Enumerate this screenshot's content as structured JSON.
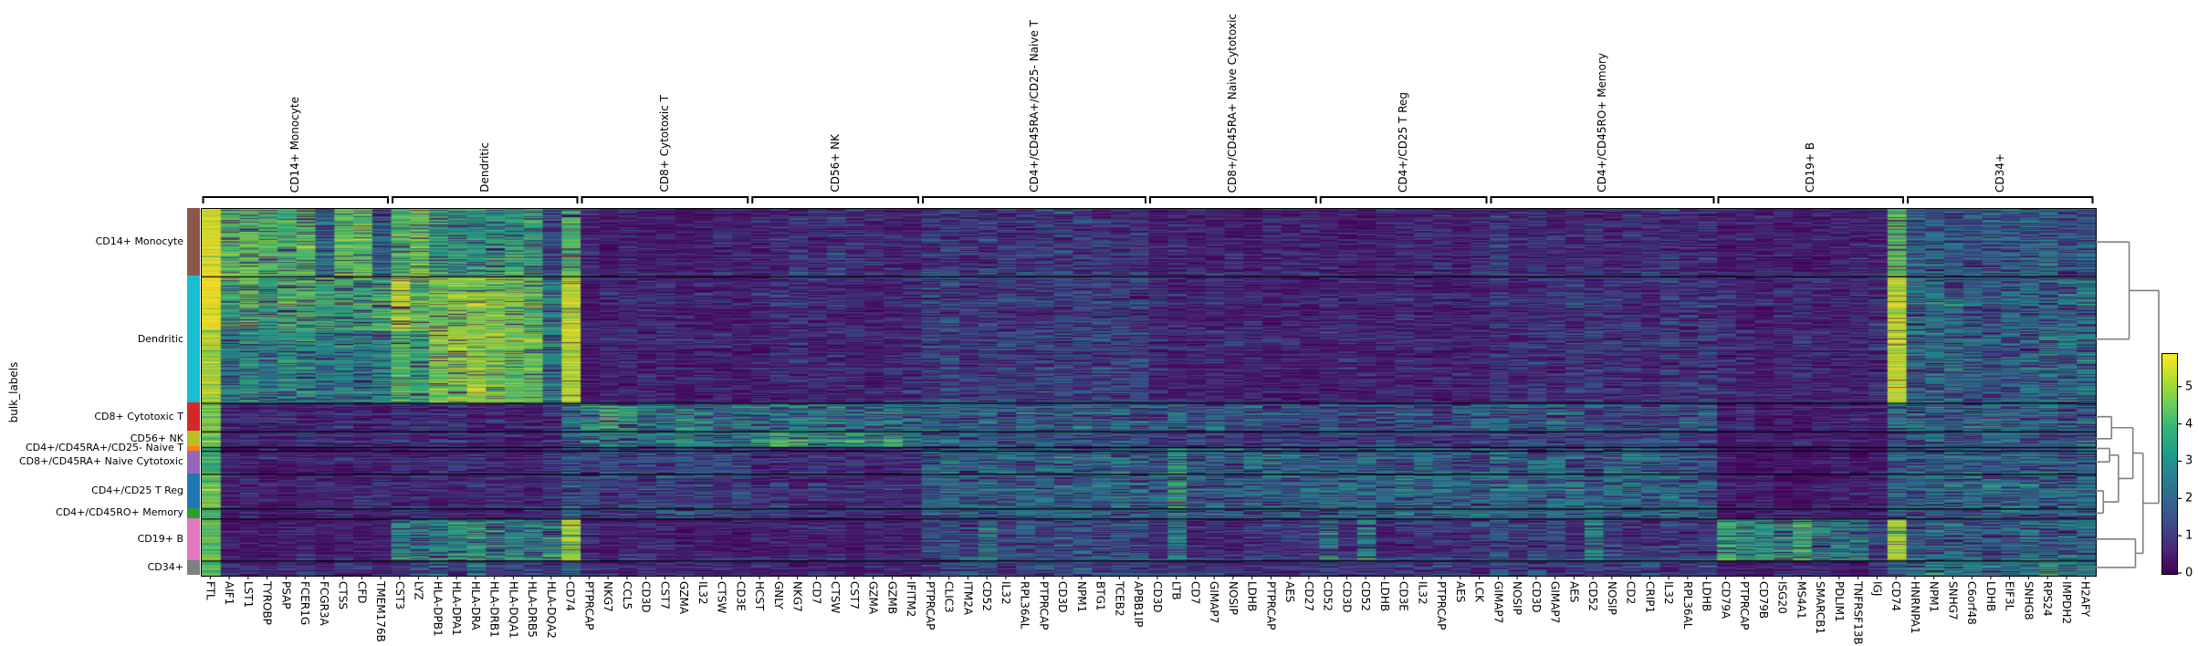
{
  "chart_data": {
    "type": "heatmap",
    "description": "Single-cell gene expression heatmap (scanpy rank_genes_groups style): cells (rows) grouped by bulk_labels vs marker genes (columns) grouped per cell type, viridis colormap, row dendrogram and colorbar on the right",
    "ylabel": "bulk_labels",
    "colorbar": {
      "ticks": [
        "0",
        "1",
        "2",
        "3",
        "4",
        "5"
      ],
      "vmin": 0,
      "vmax": 5.9
    },
    "colormap": {
      "name": "viridis",
      "stops": [
        "#440154",
        "#482878",
        "#3e4a89",
        "#31688e",
        "#26828e",
        "#1f9e89",
        "#35b779",
        "#6ece58",
        "#b5de2b",
        "#fde725"
      ]
    },
    "gene_groups": [
      {
        "label": "CD14+ Monocyte",
        "genes": [
          "FTL",
          "AIF1",
          "LST1",
          "TYROBP",
          "PSAP",
          "FCER1G",
          "FCGR3A",
          "CTSS",
          "CFD",
          "TMEM176B"
        ]
      },
      {
        "label": "Dendritic",
        "genes": [
          "CST3",
          "LYZ",
          "HLA-DPB1",
          "HLA-DPA1",
          "HLA-DRA",
          "HLA-DRB1",
          "HLA-DQA1",
          "HLA-DRB5",
          "HLA-DQA2",
          "CD74"
        ]
      },
      {
        "label": "CD8+ Cytotoxic T",
        "genes": [
          "PTPRCAP",
          "NKG7",
          "CCL5",
          "CD3D",
          "CST7",
          "GZMA",
          "IL32",
          "CTSW",
          "CD3E"
        ]
      },
      {
        "label": "CD56+ NK",
        "genes": [
          "HCST",
          "GNLY",
          "NKG7",
          "CD7",
          "CTSW",
          "CST7",
          "GZMA",
          "GZMB",
          "IFITM2"
        ]
      },
      {
        "label": "CD4+/CD45RA+/CD25- Naive T",
        "genes": [
          "PTPRCAP",
          "CLIC3",
          "ITM2A",
          "CD52",
          "IL32",
          "RPL36AL",
          "PTPRCAP",
          "CD3D",
          "NPM1",
          "BTG1",
          "TCEB2",
          "APBB1IP"
        ]
      },
      {
        "label": "CD8+/CD45RA+ Naive Cytotoxic",
        "genes": [
          "CD3D",
          "LTB",
          "CD7",
          "GIMAP7",
          "NOSIP",
          "LDHB",
          "PTPRCAP",
          "AES",
          "CD27"
        ]
      },
      {
        "label": "CD4+/CD25 T Reg",
        "genes": [
          "CD52",
          "CD3D",
          "CD52",
          "LDHB",
          "CD3E",
          "IL32",
          "PTPRCAP",
          "AES",
          "LCK"
        ]
      },
      {
        "label": "CD4+/CD45RO+ Memory",
        "genes": [
          "GIMAP7",
          "NOSIP",
          "CD3D",
          "GIMAP7",
          "AES",
          "CD52",
          "NOSIP",
          "CD2",
          "CRIP1",
          "IL32",
          "RPL36AL",
          "LDHB"
        ]
      },
      {
        "label": "CD19+ B",
        "genes": [
          "CD79A",
          "PTPRCAP",
          "CD79B",
          "ISG20",
          "MS4A1",
          "SMARCB1",
          "PDLIM1",
          "TNFRSF13B",
          "IGJ",
          "CD74"
        ]
      },
      {
        "label": "CD34+",
        "genes": [
          "HNRNPA1",
          "NPM1",
          "SNHG7",
          "C6orf48",
          "LDHB",
          "EIF3L",
          "SNHG8",
          "RPS24",
          "IMPDH2",
          "H2AFY"
        ]
      }
    ],
    "row_groups": [
      {
        "label": "CD14+ Monocyte",
        "color": "#8c564b",
        "n_cells": 129,
        "block_means": [
          4.3,
          3.6,
          0.9,
          1.3,
          1.5,
          0.9,
          1.0,
          1.2,
          0.8,
          2.3
        ],
        "overrides": {
          "0": 5.7,
          "6": 2.6,
          "9": 2.4,
          "10": 4.3,
          "11": 4.4,
          "18": 2.0,
          "19": 4.2,
          "89": 4.2
        }
      },
      {
        "label": "Dendritic",
        "color": "#17becf",
        "n_cells": 241,
        "block_means": [
          3.4,
          4.6,
          0.9,
          1.1,
          1.6,
          0.9,
          1.0,
          1.3,
          1.0,
          2.5
        ],
        "overrides": {
          "0": 5.3,
          "10": 4.6,
          "11": 4.2,
          "14": 5.0,
          "18": 2.9,
          "19": 5.4,
          "89": 5.4
        }
      },
      {
        "label": "CD8+ Cytotoxic T",
        "color": "#d62728",
        "n_cells": 54,
        "block_means": [
          1.0,
          1.1,
          3.1,
          2.8,
          2.5,
          2.1,
          2.1,
          2.2,
          0.8,
          2.4
        ],
        "overrides": {
          "0": 4.5,
          "19": 2.4,
          "21": 3.8,
          "22": 3.8,
          "25": 3.4,
          "51": 2.8,
          "89": 2.4
        }
      },
      {
        "label": "CD56+ NK",
        "color": "#bcbd22",
        "n_cells": 30,
        "block_means": [
          1.0,
          1.0,
          2.9,
          3.3,
          2.3,
          1.6,
          1.6,
          1.8,
          0.7,
          2.3
        ],
        "overrides": {
          "0": 4.4,
          "19": 2.0,
          "30": 3.9,
          "31": 3.9,
          "36": 3.6,
          "37": 3.3,
          "89": 2.0
        }
      },
      {
        "label": "CD4+/CD45RA+/CD25- Naive T",
        "color": "#ff7f0e",
        "n_cells": 7,
        "block_means": [
          0.8,
          0.9,
          1.6,
          1.2,
          2.5,
          2.5,
          2.3,
          2.3,
          0.6,
          2.4
        ],
        "overrides": {
          "0": 4.2,
          "19": 2.2,
          "51": 3.2,
          "89": 2.2
        }
      },
      {
        "label": "CD8+/CD45RA+ Naive Cytotoxic",
        "color": "#9467bd",
        "n_cells": 44,
        "block_means": [
          0.8,
          0.9,
          1.7,
          1.3,
          2.5,
          2.5,
          2.4,
          2.4,
          0.6,
          2.4
        ],
        "overrides": {
          "0": 4.2,
          "19": 2.2,
          "51": 3.2,
          "89": 2.2
        }
      },
      {
        "label": "CD4+/CD25 T Reg",
        "color": "#1f77b4",
        "n_cells": 66,
        "block_means": [
          0.9,
          1.0,
          1.6,
          1.1,
          2.4,
          2.3,
          2.6,
          2.5,
          0.6,
          2.5
        ],
        "overrides": {
          "0": 4.4,
          "19": 2.4,
          "51": 3.2,
          "89": 2.4
        }
      },
      {
        "label": "CD4+/CD45RO+ Memory",
        "color": "#2ca02c",
        "n_cells": 19,
        "block_means": [
          0.9,
          1.0,
          1.9,
          1.3,
          2.4,
          2.3,
          2.5,
          2.6,
          0.7,
          2.4
        ],
        "overrides": {
          "0": 4.4,
          "19": 2.4,
          "51": 3.2,
          "89": 2.4
        }
      },
      {
        "label": "CD19+ B",
        "color": "#e377c2",
        "n_cells": 80,
        "block_means": [
          0.8,
          3.3,
          0.9,
          0.9,
          2.0,
          1.3,
          1.4,
          1.6,
          3.3,
          2.6
        ],
        "overrides": {
          "0": 4.4,
          "19": 5.3,
          "41": 3.0,
          "51": 3.0,
          "59": 3.0,
          "61": 3.0,
          "73": 3.0,
          "80": 3.9,
          "82": 3.6,
          "84": 3.8,
          "88": 2.0,
          "89": 5.3
        }
      },
      {
        "label": "CD34+",
        "color": "#7f7f7f",
        "n_cells": 28,
        "block_means": [
          1.1,
          1.5,
          0.9,
          1.0,
          1.8,
          1.2,
          1.3,
          1.6,
          0.9,
          2.9
        ],
        "overrides": {
          "0": 4.5,
          "12": 2.2,
          "14": 2.5,
          "19": 2.6,
          "89": 2.6,
          "97": 3.4
        }
      }
    ],
    "dendrogram": {
      "color": "#7f7f7f",
      "leaf_order": [
        "CD14+ Monocyte",
        "Dendritic",
        "CD8+ Cytotoxic T",
        "CD56+ NK",
        "CD4+/CD45RA+/CD25- Naive T",
        "CD8+/CD45RA+ Naive Cytotoxic",
        "CD4+/CD25 T Reg",
        "CD4+/CD45RO+ Memory",
        "CD19+ B",
        "CD34+"
      ],
      "merges": [
        {
          "a": "L2",
          "b": "L3",
          "h": 0.25
        },
        {
          "a": "L4",
          "b": "L5",
          "h": 0.22
        },
        {
          "a": "L6",
          "b": "L7",
          "h": 0.12
        },
        {
          "a": "M1",
          "b": "M2",
          "h": 0.36
        },
        {
          "a": "M0",
          "b": "M3",
          "h": 0.59
        },
        {
          "a": "L8",
          "b": "L9",
          "h": 0.63
        },
        {
          "a": "M4",
          "b": "M5",
          "h": 0.75
        },
        {
          "a": "L0",
          "b": "L1",
          "h": 0.53
        },
        {
          "a": "M7",
          "b": "M6",
          "h": 1.0
        }
      ]
    }
  }
}
